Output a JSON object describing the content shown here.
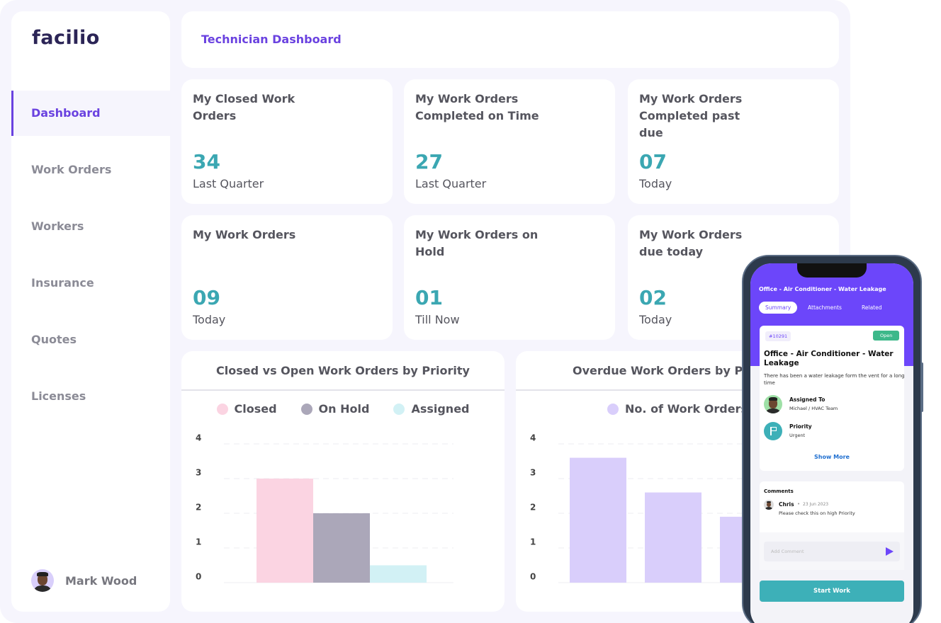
{
  "sidebar": {
    "logo": "facilio",
    "nav": [
      "Dashboard",
      "Work Orders",
      "Workers",
      "Insurance",
      "Quotes",
      "Licenses"
    ],
    "user": "Mark Wood"
  },
  "header": {
    "title": "Technician Dashboard"
  },
  "stats": [
    {
      "title": "My Closed Work Orders",
      "value": "34",
      "period": "Last Quarter"
    },
    {
      "title": "My Work Orders Completed on Time",
      "value": "27",
      "period": "Last Quarter"
    },
    {
      "title": "My Work Orders Completed past due",
      "value": "07",
      "period": "Today"
    },
    {
      "title": "My Work Orders",
      "value": "09",
      "period": "Today"
    },
    {
      "title": "My Work Orders on Hold",
      "value": "01",
      "period": "Till Now"
    },
    {
      "title": "My Work Orders due today",
      "value": "02",
      "period": "Today"
    }
  ],
  "charts": [
    {
      "type": "bar",
      "title": "Closed vs Open Work Orders by Priority",
      "categories": [
        null
      ],
      "series": [
        {
          "name": "Closed",
          "color": "#fbd4e2",
          "values": [
            3
          ]
        },
        {
          "name": "On Hold",
          "color": "#aba7b9",
          "values": [
            2
          ]
        },
        {
          "name": "Assigned",
          "color": "#d2f1f5",
          "values": [
            0.5
          ]
        }
      ],
      "ylim": [
        0,
        4
      ],
      "yticks": [
        0,
        1,
        2,
        3,
        4
      ],
      "grid": true
    },
    {
      "type": "bar",
      "title": "Overdue Work Orders by Priority",
      "categories": [
        null,
        null,
        null
      ],
      "series": [
        {
          "name": "No. of Work Orders",
          "color": "#d9cefb",
          "values": [
            3.6,
            2.6,
            1.9
          ]
        }
      ],
      "ylim": [
        0,
        4
      ],
      "yticks": [
        0,
        1,
        2,
        3,
        4
      ],
      "grid": true
    }
  ],
  "phone": {
    "title": "Office - Air Conditioner - Water Leakage",
    "tabs": [
      "Summary",
      "Attachments",
      "Related"
    ],
    "card": {
      "id": "#10291",
      "status": "Open",
      "heading": "Office - Air Conditioner - Water Leakage",
      "description": "There has been a water leakage form the vent for a long time",
      "assigned_label": "Assigned To",
      "assigned_value": "Michael / HVAC Team",
      "priority_label": "Priority",
      "priority_value": "Urgent",
      "show_more": "Show More"
    },
    "comments": {
      "title": "Comments",
      "author": "Chris",
      "date": "23 Jun 2023",
      "text": "Please check this on high Priority",
      "placeholder": "Add Comment"
    },
    "button": "Start Work"
  }
}
